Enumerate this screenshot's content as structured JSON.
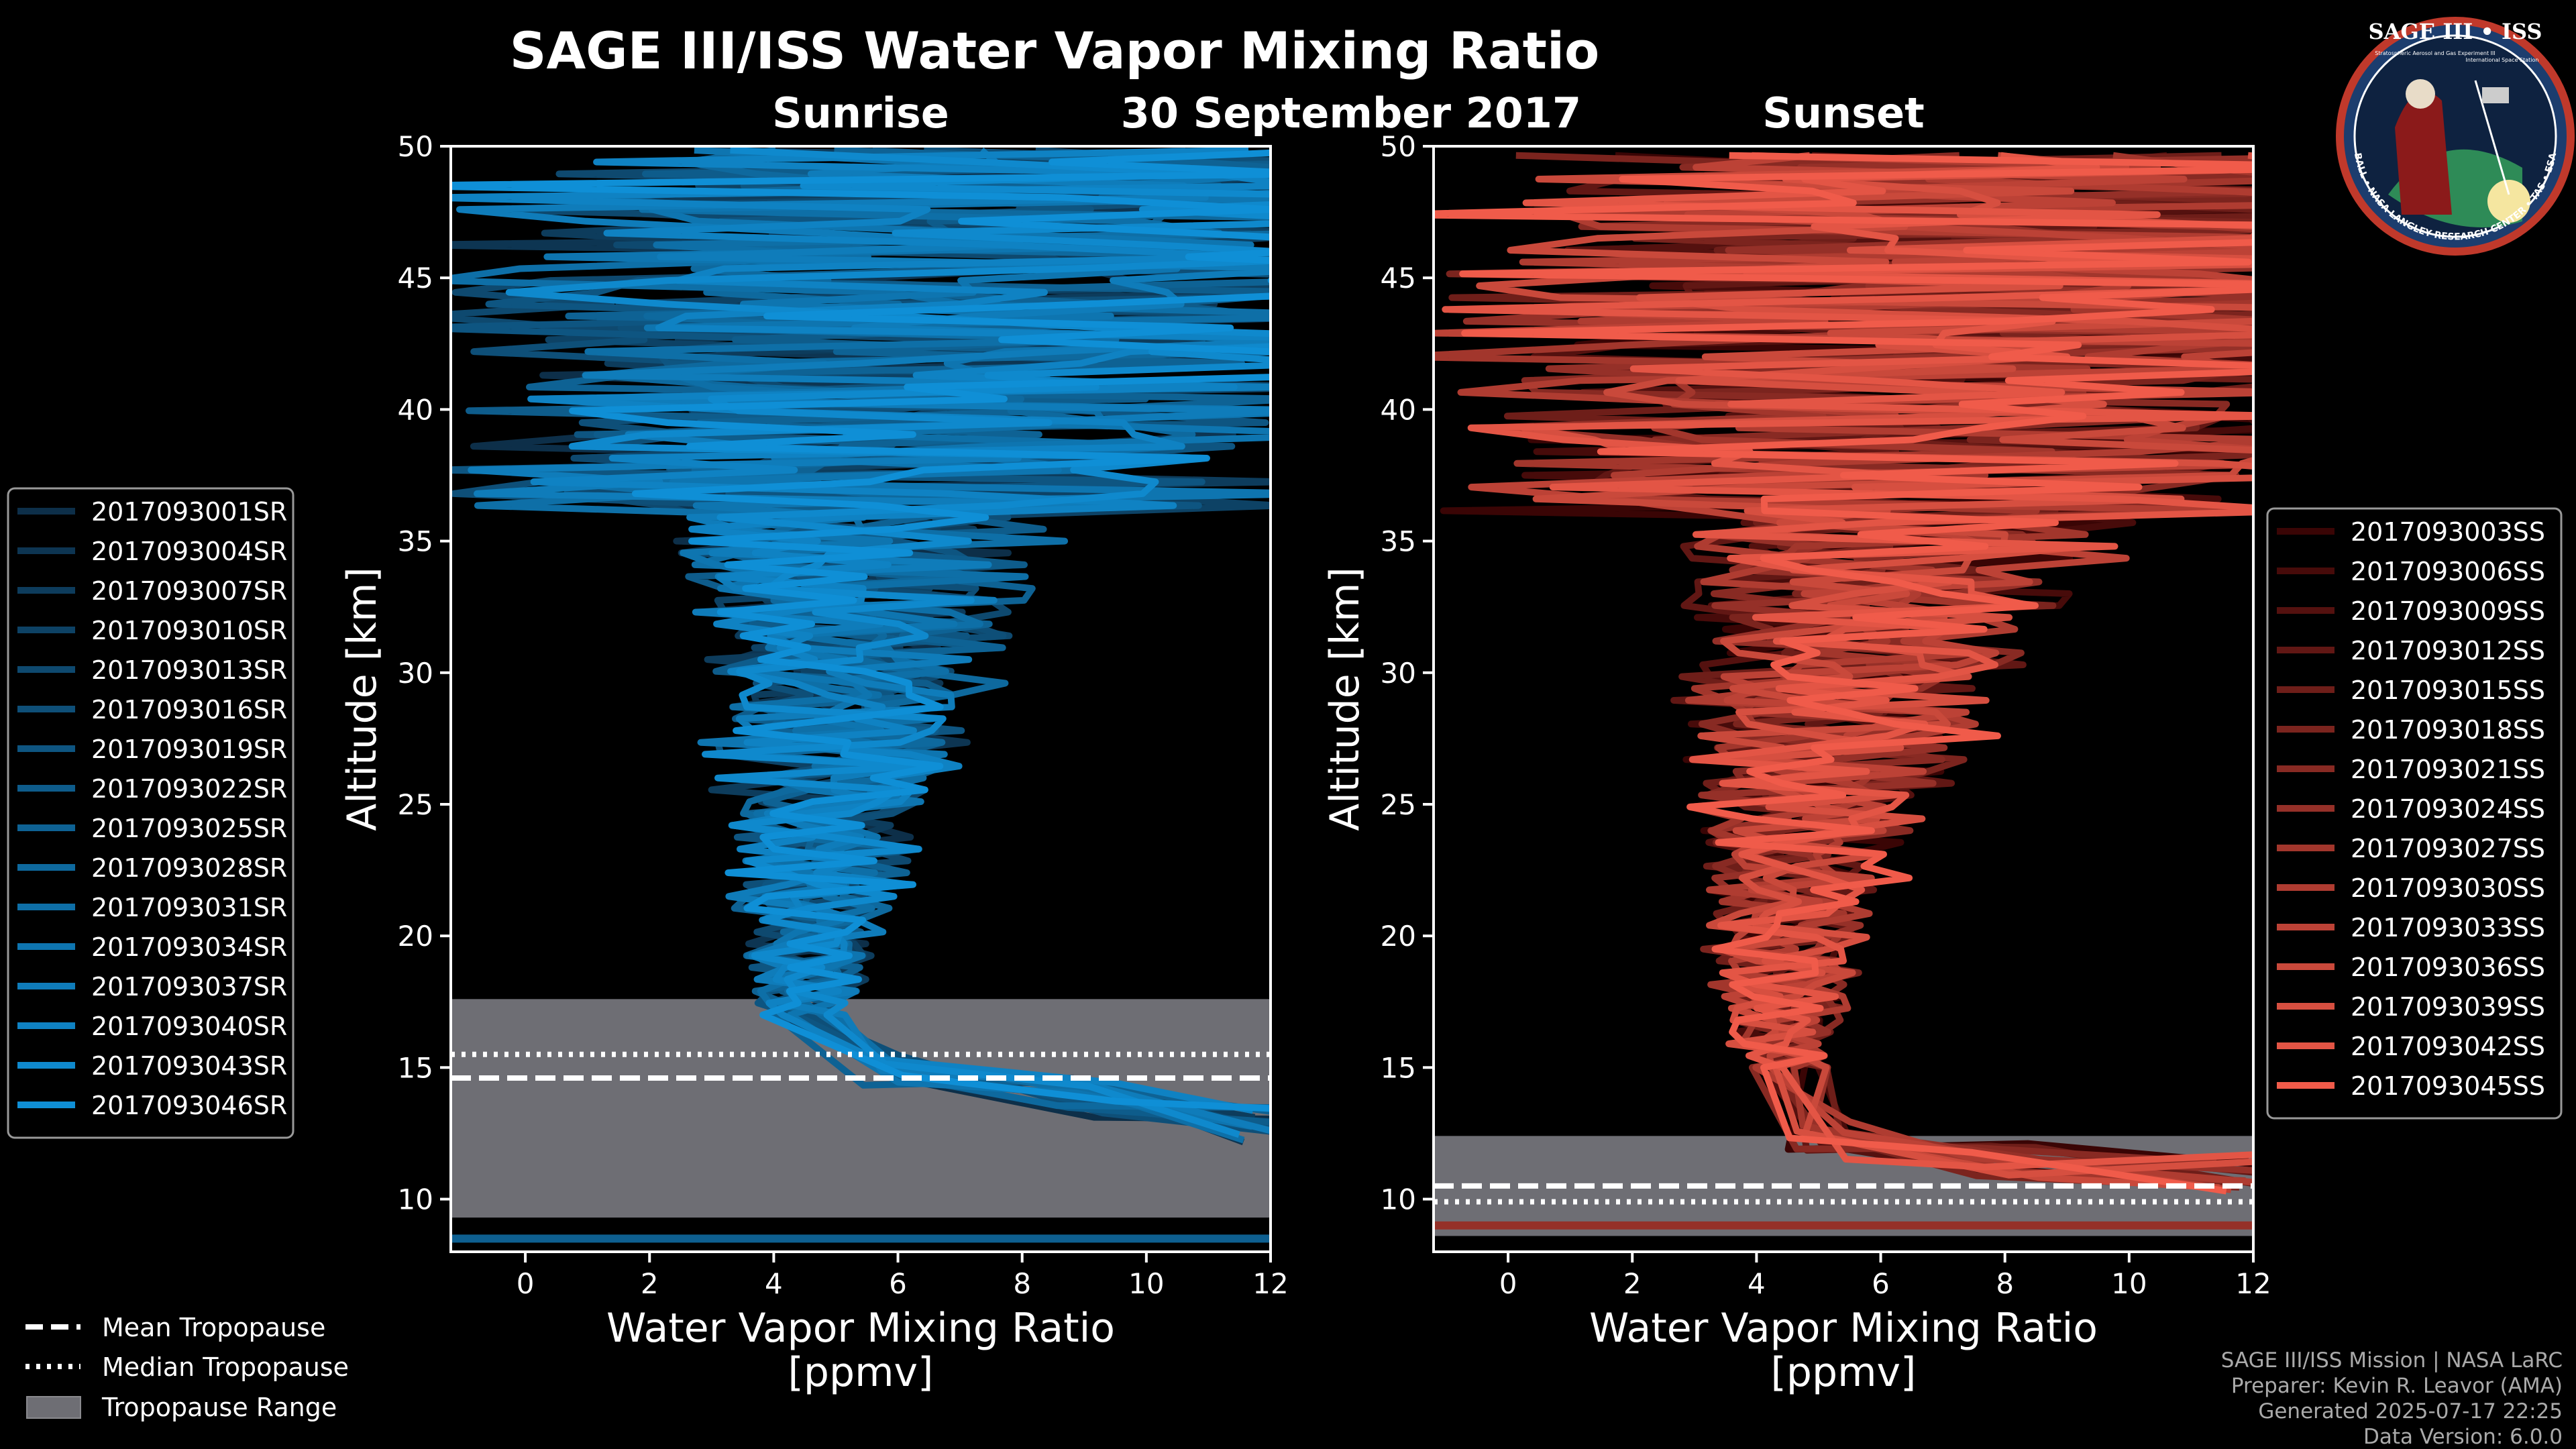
{
  "title": "SAGE III/ISS Water Vapor Mixing Ratio",
  "date": "30 September 2017",
  "logo": {
    "top_text": "SAGE III • ISS",
    "sub_text_1": "Stratospheric Aerosol and Gas Experiment III",
    "sub_text_2": "International Space Station",
    "ring_text": "BALL • NASA LANGLEY RESEARCH CENTER • TAS • ESA"
  },
  "footer": {
    "mission": "SAGE III/ISS Mission | NASA LaRC",
    "preparer": "Preparer: Kevin R. Leavor (AMA)",
    "generated": "Generated 2025-07-17 22:25",
    "version": "Data Version: 6.0.0"
  },
  "bottom_legend": [
    {
      "label": "Mean Tropopause",
      "style": "dashed"
    },
    {
      "label": "Median Tropopause",
      "style": "dotted"
    },
    {
      "label": "Tropopause Range",
      "style": "patch"
    }
  ],
  "chart_data": [
    {
      "type": "line",
      "panel": "Sunrise",
      "title": "Sunrise",
      "xlabel": "Water Vapor Mixing Ratio\n[ppmv]",
      "ylabel": "Altitude [km]",
      "xlim": [
        -1.2,
        12
      ],
      "ylim": [
        8,
        50
      ],
      "xticks": [
        0,
        2,
        4,
        6,
        8,
        10,
        12
      ],
      "yticks": [
        10,
        15,
        20,
        25,
        30,
        35,
        40,
        45,
        50
      ],
      "grid": false,
      "legend_position": "left",
      "color_start": "#0d2f49",
      "color_end": "#0f8fd6",
      "tropopause": {
        "mean": 14.6,
        "median": 15.5,
        "min": 9.3,
        "max": 17.6
      },
      "low_line_alt": 8.5,
      "series_names": [
        "2017093001SR",
        "2017093004SR",
        "2017093007SR",
        "2017093010SR",
        "2017093013SR",
        "2017093016SR",
        "2017093019SR",
        "2017093022SR",
        "2017093025SR",
        "2017093028SR",
        "2017093031SR",
        "2017093034SR",
        "2017093037SR",
        "2017093040SR",
        "2017093043SR",
        "2017093046SR"
      ],
      "series_base_profile": [
        [
          4.5,
          17
        ],
        [
          4.6,
          20
        ],
        [
          4.9,
          25
        ],
        [
          5.2,
          30
        ],
        [
          5.4,
          35
        ],
        [
          6.0,
          38
        ],
        [
          6.5,
          42
        ],
        [
          7.0,
          46
        ],
        [
          7.0,
          50
        ]
      ],
      "series_tail_profile": [
        [
          6.0,
          15.5
        ],
        [
          9.0,
          14.6
        ],
        [
          12.0,
          13.5
        ]
      ]
    },
    {
      "type": "line",
      "panel": "Sunset",
      "title": "Sunset",
      "xlabel": "Water Vapor Mixing Ratio\n[ppmv]",
      "ylabel": "Altitude [km]",
      "xlim": [
        -1.2,
        12
      ],
      "ylim": [
        8,
        50
      ],
      "xticks": [
        0,
        2,
        4,
        6,
        8,
        10,
        12
      ],
      "yticks": [
        10,
        15,
        20,
        25,
        30,
        35,
        40,
        45,
        50
      ],
      "grid": false,
      "legend_position": "right",
      "color_start": "#3a0505",
      "color_end": "#f05b4a",
      "tropopause": {
        "mean": 10.5,
        "median": 9.9,
        "min": 8.6,
        "max": 12.4
      },
      "low_line_alt": 9.0,
      "series_names": [
        "2017093003SS",
        "2017093006SS",
        "2017093009SS",
        "2017093012SS",
        "2017093015SS",
        "2017093018SS",
        "2017093021SS",
        "2017093024SS",
        "2017093027SS",
        "2017093030SS",
        "2017093033SS",
        "2017093036SS",
        "2017093039SS",
        "2017093042SS",
        "2017093045SS"
      ],
      "series_base_profile": [
        [
          4.5,
          15
        ],
        [
          4.4,
          18
        ],
        [
          4.6,
          22
        ],
        [
          5.2,
          27
        ],
        [
          5.8,
          32
        ],
        [
          6.5,
          36
        ],
        [
          7.0,
          40
        ],
        [
          7.0,
          45
        ],
        [
          7.0,
          50
        ]
      ],
      "series_tail_profile": [
        [
          5.0,
          13
        ],
        [
          8.0,
          12.3
        ],
        [
          12.0,
          11.8
        ]
      ]
    }
  ]
}
